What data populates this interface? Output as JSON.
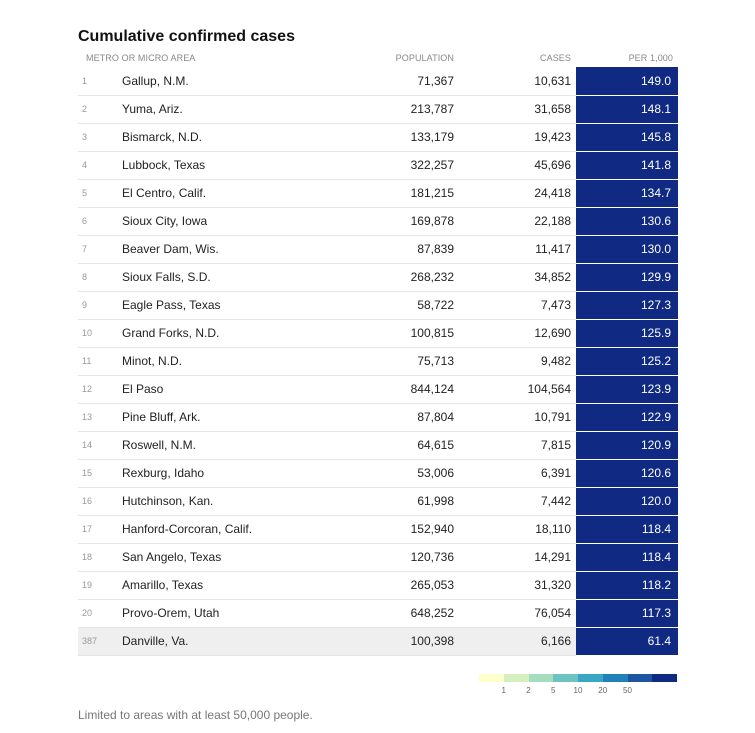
{
  "title": "Cumulative confirmed cases",
  "columns": {
    "area": "Metro or micro area",
    "population": "Population",
    "cases": "Cases",
    "per1000": "Per 1,000"
  },
  "chart_data": {
    "type": "table",
    "title": "Cumulative confirmed cases",
    "columns": [
      "Metro or micro area",
      "Population",
      "Cases",
      "Per 1,000"
    ],
    "rows": [
      {
        "rank": "1",
        "area": "Gallup, N.M.",
        "population": "71,367",
        "cases": "10,631",
        "per1000": "149.0"
      },
      {
        "rank": "2",
        "area": "Yuma, Ariz.",
        "population": "213,787",
        "cases": "31,658",
        "per1000": "148.1"
      },
      {
        "rank": "3",
        "area": "Bismarck, N.D.",
        "population": "133,179",
        "cases": "19,423",
        "per1000": "145.8"
      },
      {
        "rank": "4",
        "area": "Lubbock, Texas",
        "population": "322,257",
        "cases": "45,696",
        "per1000": "141.8"
      },
      {
        "rank": "5",
        "area": "El Centro, Calif.",
        "population": "181,215",
        "cases": "24,418",
        "per1000": "134.7"
      },
      {
        "rank": "6",
        "area": "Sioux City, Iowa",
        "population": "169,878",
        "cases": "22,188",
        "per1000": "130.6"
      },
      {
        "rank": "7",
        "area": "Beaver Dam, Wis.",
        "population": "87,839",
        "cases": "11,417",
        "per1000": "130.0"
      },
      {
        "rank": "8",
        "area": "Sioux Falls, S.D.",
        "population": "268,232",
        "cases": "34,852",
        "per1000": "129.9"
      },
      {
        "rank": "9",
        "area": "Eagle Pass, Texas",
        "population": "58,722",
        "cases": "7,473",
        "per1000": "127.3"
      },
      {
        "rank": "10",
        "area": "Grand Forks, N.D.",
        "population": "100,815",
        "cases": "12,690",
        "per1000": "125.9"
      },
      {
        "rank": "11",
        "area": "Minot, N.D.",
        "population": "75,713",
        "cases": "9,482",
        "per1000": "125.2"
      },
      {
        "rank": "12",
        "area": "El Paso",
        "population": "844,124",
        "cases": "104,564",
        "per1000": "123.9"
      },
      {
        "rank": "13",
        "area": "Pine Bluff, Ark.",
        "population": "87,804",
        "cases": "10,791",
        "per1000": "122.9"
      },
      {
        "rank": "14",
        "area": "Roswell, N.M.",
        "population": "64,615",
        "cases": "7,815",
        "per1000": "120.9"
      },
      {
        "rank": "15",
        "area": "Rexburg, Idaho",
        "population": "53,006",
        "cases": "6,391",
        "per1000": "120.6"
      },
      {
        "rank": "16",
        "area": "Hutchinson, Kan.",
        "population": "61,998",
        "cases": "7,442",
        "per1000": "120.0"
      },
      {
        "rank": "17",
        "area": "Hanford-Corcoran, Calif.",
        "population": "152,940",
        "cases": "18,110",
        "per1000": "118.4"
      },
      {
        "rank": "18",
        "area": "San Angelo, Texas",
        "population": "120,736",
        "cases": "14,291",
        "per1000": "118.4"
      },
      {
        "rank": "19",
        "area": "Amarillo, Texas",
        "population": "265,053",
        "cases": "31,320",
        "per1000": "118.2"
      },
      {
        "rank": "20",
        "area": "Provo-Orem, Utah",
        "population": "648,252",
        "cases": "76,054",
        "per1000": "117.3"
      },
      {
        "rank": "387",
        "area": "Danville, Va.",
        "population": "100,398",
        "cases": "6,166",
        "per1000": "61.4",
        "highlight": true
      }
    ],
    "cell_color": "#102a83",
    "legend": {
      "colors": [
        "#ffffcc",
        "#d5efbe",
        "#a6dcc0",
        "#6cc3c2",
        "#3aa6c5",
        "#2181b8",
        "#1e55a3",
        "#102a83"
      ],
      "labels": [
        "1",
        "2",
        "5",
        "10",
        "20",
        "50"
      ]
    }
  },
  "note": "Limited to areas with at least 50,000 people."
}
